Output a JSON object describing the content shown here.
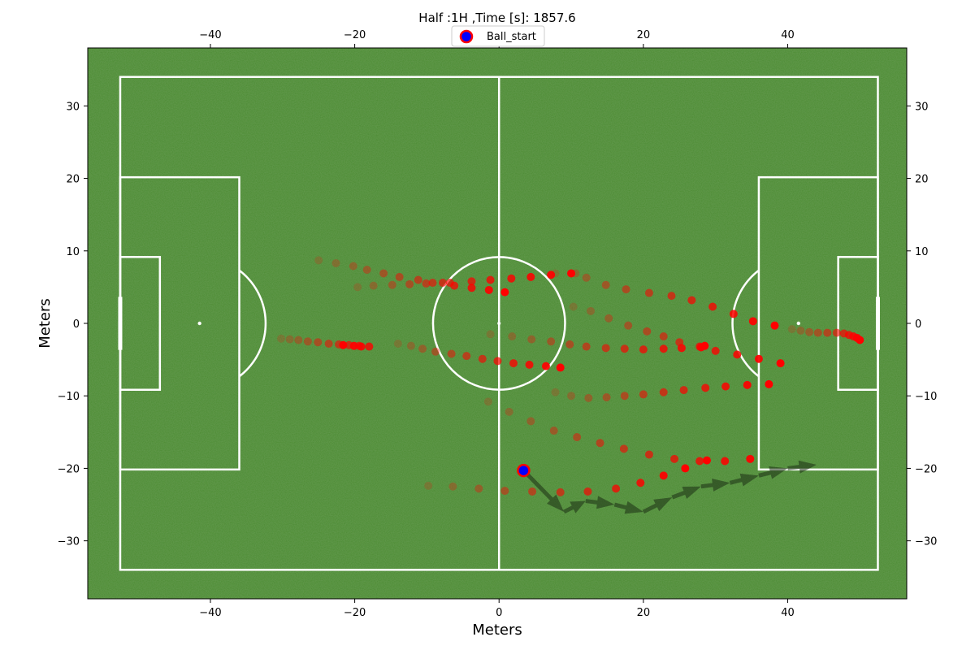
{
  "chart_data": {
    "type": "scatter",
    "title": "Half :1H ,Time [s]: 1857.6",
    "xlabel": "Meters",
    "ylabel": "Meters",
    "xlim": [
      -57,
      56.5
    ],
    "ylim": [
      -38,
      38
    ],
    "x_ticks": [
      -40,
      -20,
      0,
      20,
      40
    ],
    "y_ticks": [
      -30,
      -20,
      -10,
      0,
      10,
      20,
      30
    ],
    "legend": {
      "position": "top-center",
      "entries": [
        {
          "name": "Ball_start",
          "marker": "circle",
          "fill": "#0000ff",
          "edge": "#ff0000"
        }
      ]
    },
    "pitch": {
      "length": 105,
      "width": 68,
      "color": "#4a8a2f",
      "line_color": "#ffffff"
    },
    "colors": {
      "player": "#ff0000",
      "player_faded": "#9a5a1e",
      "ball_fill": "#0000ff",
      "ball_edge": "#ff0000",
      "arrow": "#1c2e14"
    },
    "ball_start": {
      "x": 3.4,
      "y": -20.3
    },
    "ball_path": [
      {
        "x": 3.4,
        "y": -20.3
      },
      {
        "x": 9,
        "y": -26
      },
      {
        "x": 12,
        "y": -24.5
      },
      {
        "x": 16,
        "y": -25
      },
      {
        "x": 20,
        "y": -26
      },
      {
        "x": 24,
        "y": -24
      },
      {
        "x": 28,
        "y": -22.5
      },
      {
        "x": 32,
        "y": -22
      },
      {
        "x": 36,
        "y": -21
      },
      {
        "x": 40,
        "y": -20
      },
      {
        "x": 44,
        "y": -19.5
      }
    ],
    "series": [
      {
        "points": [
          {
            "x": -25,
            "y": 8.7
          },
          {
            "x": -22.6,
            "y": 8.3
          },
          {
            "x": -20.2,
            "y": 7.9
          },
          {
            "x": -18.3,
            "y": 7.4
          },
          {
            "x": -16,
            "y": 6.9
          },
          {
            "x": -13.8,
            "y": 6.4
          },
          {
            "x": -11.2,
            "y": 6.0
          },
          {
            "x": -9.2,
            "y": 5.6
          },
          {
            "x": -6.8,
            "y": 5.6
          },
          {
            "x": -3.8,
            "y": 5.8
          },
          {
            "x": -1.2,
            "y": 6.0
          },
          {
            "x": 1.7,
            "y": 6.2
          },
          {
            "x": 4.4,
            "y": 6.4
          },
          {
            "x": 7.2,
            "y": 6.7
          },
          {
            "x": 10,
            "y": 6.9
          }
        ]
      },
      {
        "points": [
          {
            "x": -19.6,
            "y": 5.0
          },
          {
            "x": -17.4,
            "y": 5.2
          },
          {
            "x": -14.8,
            "y": 5.3
          },
          {
            "x": -12.4,
            "y": 5.4
          },
          {
            "x": -10.1,
            "y": 5.5
          },
          {
            "x": -7.8,
            "y": 5.6
          },
          {
            "x": -6.2,
            "y": 5.2
          },
          {
            "x": -3.8,
            "y": 4.9
          },
          {
            "x": -1.4,
            "y": 4.6
          },
          {
            "x": 0.8,
            "y": 4.3
          }
        ]
      },
      {
        "points": [
          {
            "x": 7.8,
            "y": 6.9
          },
          {
            "x": 10.6,
            "y": 6.9
          },
          {
            "x": 12.1,
            "y": 6.3
          },
          {
            "x": 14.8,
            "y": 5.3
          },
          {
            "x": 17.6,
            "y": 4.7
          },
          {
            "x": 20.8,
            "y": 4.2
          },
          {
            "x": 23.9,
            "y": 3.8
          },
          {
            "x": 26.7,
            "y": 3.2
          },
          {
            "x": 29.6,
            "y": 2.3
          },
          {
            "x": 32.5,
            "y": 1.3
          },
          {
            "x": 35.2,
            "y": 0.3
          },
          {
            "x": 38.2,
            "y": -0.3
          }
        ]
      },
      {
        "points": [
          {
            "x": 10.3,
            "y": 2.3
          },
          {
            "x": 12.7,
            "y": 1.7
          },
          {
            "x": 15.2,
            "y": 0.7
          },
          {
            "x": 17.9,
            "y": -0.3
          },
          {
            "x": 20.5,
            "y": -1.1
          },
          {
            "x": 22.8,
            "y": -1.8
          },
          {
            "x": 25,
            "y": -2.6
          },
          {
            "x": 27.8,
            "y": -3.2
          },
          {
            "x": 30,
            "y": -3.8
          },
          {
            "x": 33,
            "y": -4.3
          },
          {
            "x": 36,
            "y": -4.9
          },
          {
            "x": 39,
            "y": -5.5
          }
        ]
      },
      {
        "points": [
          {
            "x": -30.2,
            "y": -2.1
          },
          {
            "x": -29,
            "y": -2.2
          },
          {
            "x": -27.8,
            "y": -2.3
          },
          {
            "x": -26.5,
            "y": -2.5
          },
          {
            "x": -25.1,
            "y": -2.6
          },
          {
            "x": -23.6,
            "y": -2.8
          },
          {
            "x": -22.2,
            "y": -2.9
          },
          {
            "x": -20.8,
            "y": -3.0
          },
          {
            "x": -19.4,
            "y": -3.1
          },
          {
            "x": -18,
            "y": -3.2
          },
          {
            "x": -19.1,
            "y": -3.2
          },
          {
            "x": -20.1,
            "y": -3.1
          },
          {
            "x": -21.6,
            "y": -3.0
          }
        ]
      },
      {
        "points": [
          {
            "x": -14,
            "y": -2.8
          },
          {
            "x": -12.2,
            "y": -3.1
          },
          {
            "x": -10.6,
            "y": -3.5
          },
          {
            "x": -8.8,
            "y": -3.9
          },
          {
            "x": -6.6,
            "y": -4.2
          },
          {
            "x": -4.5,
            "y": -4.5
          },
          {
            "x": -2.3,
            "y": -4.9
          },
          {
            "x": -0.2,
            "y": -5.2
          },
          {
            "x": 2,
            "y": -5.5
          },
          {
            "x": 4.2,
            "y": -5.7
          },
          {
            "x": 6.5,
            "y": -5.9
          },
          {
            "x": 8.5,
            "y": -6.1
          }
        ]
      },
      {
        "points": [
          {
            "x": -1.2,
            "y": -1.5
          },
          {
            "x": 1.8,
            "y": -1.8
          },
          {
            "x": 4.5,
            "y": -2.2
          },
          {
            "x": 7.2,
            "y": -2.5
          },
          {
            "x": 9.8,
            "y": -2.9
          },
          {
            "x": 12.1,
            "y": -3.2
          },
          {
            "x": 14.8,
            "y": -3.4
          },
          {
            "x": 17.4,
            "y": -3.5
          },
          {
            "x": 20,
            "y": -3.6
          },
          {
            "x": 22.8,
            "y": -3.5
          },
          {
            "x": 25.3,
            "y": -3.4
          },
          {
            "x": 28,
            "y": -3.3
          },
          {
            "x": 28.5,
            "y": -3.1
          }
        ]
      },
      {
        "points": [
          {
            "x": 7.8,
            "y": -9.5
          },
          {
            "x": 10,
            "y": -10
          },
          {
            "x": 12.4,
            "y": -10.3
          },
          {
            "x": 14.9,
            "y": -10.2
          },
          {
            "x": 17.4,
            "y": -10
          },
          {
            "x": 20,
            "y": -9.8
          },
          {
            "x": 22.8,
            "y": -9.5
          },
          {
            "x": 25.6,
            "y": -9.2
          },
          {
            "x": 28.6,
            "y": -8.9
          },
          {
            "x": 31.4,
            "y": -8.7
          },
          {
            "x": 34.4,
            "y": -8.5
          },
          {
            "x": 37.4,
            "y": -8.4
          }
        ]
      },
      {
        "points": [
          {
            "x": -1.5,
            "y": -10.8
          },
          {
            "x": 1.4,
            "y": -12.2
          },
          {
            "x": 4.4,
            "y": -13.5
          },
          {
            "x": 7.6,
            "y": -14.8
          },
          {
            "x": 10.8,
            "y": -15.7
          },
          {
            "x": 14,
            "y": -16.5
          },
          {
            "x": 17.3,
            "y": -17.3
          },
          {
            "x": 20.8,
            "y": -18.1
          },
          {
            "x": 24.3,
            "y": -18.7
          },
          {
            "x": 27.8,
            "y": -19
          },
          {
            "x": 31.3,
            "y": -19
          },
          {
            "x": 34.8,
            "y": -18.7
          },
          {
            "x": 28.8,
            "y": -18.9
          }
        ]
      },
      {
        "points": [
          {
            "x": -9.8,
            "y": -22.4
          },
          {
            "x": -6.4,
            "y": -22.5
          },
          {
            "x": -2.8,
            "y": -22.8
          },
          {
            "x": 0.8,
            "y": -23.1
          },
          {
            "x": 4.6,
            "y": -23.2
          },
          {
            "x": 8.5,
            "y": -23.3
          },
          {
            "x": 12.3,
            "y": -23.2
          },
          {
            "x": 16.2,
            "y": -22.8
          },
          {
            "x": 19.6,
            "y": -22
          },
          {
            "x": 22.8,
            "y": -21
          },
          {
            "x": 25.8,
            "y": -20
          }
        ]
      },
      {
        "points": [
          {
            "x": 40.6,
            "y": -0.8
          },
          {
            "x": 41.8,
            "y": -1.0
          },
          {
            "x": 43,
            "y": -1.2
          },
          {
            "x": 44.2,
            "y": -1.3
          },
          {
            "x": 45.5,
            "y": -1.3
          },
          {
            "x": 46.8,
            "y": -1.3
          },
          {
            "x": 47.8,
            "y": -1.4
          },
          {
            "x": 48.5,
            "y": -1.6
          },
          {
            "x": 49.1,
            "y": -1.8
          },
          {
            "x": 49.6,
            "y": -2.0
          },
          {
            "x": 50,
            "y": -2.3
          }
        ]
      }
    ]
  }
}
